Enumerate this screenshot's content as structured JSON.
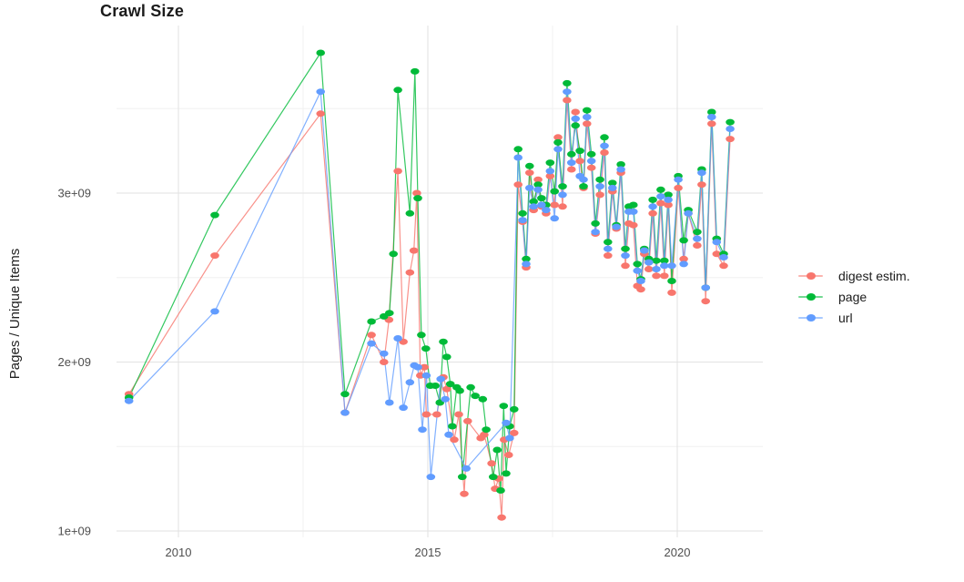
{
  "title": "Crawl Size",
  "y_axis": {
    "label": "Pages / Unique Items",
    "ticks": [
      {
        "label": "1e+09",
        "value": 1.0
      },
      {
        "label": "2e+09",
        "value": 2.0
      },
      {
        "label": "3e+09",
        "value": 3.0
      }
    ],
    "minor_values": [
      1.5,
      2.5,
      3.5
    ]
  },
  "x_axis": {
    "ticks": [
      {
        "label": "2010",
        "year": 2010
      },
      {
        "label": "2015",
        "year": 2015
      },
      {
        "label": "2020",
        "year": 2020
      }
    ],
    "minor_years": [
      2012.5,
      2017.5
    ]
  },
  "legend": {
    "items": [
      {
        "label": "digest estim.",
        "color": "#F8766D"
      },
      {
        "label": "page",
        "color": "#00BA38"
      },
      {
        "label": "url",
        "color": "#619CFF"
      }
    ]
  },
  "chart_data": {
    "type": "line",
    "title": "Crawl Size",
    "xlabel": "",
    "ylabel": "Pages / Unique Items",
    "x_range": [
      2008.7,
      2021.6
    ],
    "y_range": [
      0.97,
      3.95
    ],
    "y_unit": "billions (value × 1e9)",
    "grid": true,
    "legend_position": "right",
    "series": [
      {
        "name": "digest estim.",
        "color": "#F8766D",
        "points": [
          [
            2009.01,
            1.81
          ],
          [
            2010.73,
            2.63
          ],
          [
            2012.85,
            3.47
          ],
          [
            2013.34,
            1.7
          ],
          [
            2013.87,
            2.16
          ],
          [
            2014.12,
            2.0
          ],
          [
            2014.22,
            2.25
          ],
          [
            2014.4,
            3.13
          ],
          [
            2014.51,
            2.12
          ],
          [
            2014.64,
            2.53
          ],
          [
            2014.72,
            2.66
          ],
          [
            2014.78,
            3.0
          ],
          [
            2014.85,
            1.92
          ],
          [
            2014.93,
            1.97
          ],
          [
            2014.97,
            1.69
          ],
          [
            2015.18,
            1.69
          ],
          [
            2015.31,
            1.91
          ],
          [
            2015.38,
            1.84
          ],
          [
            2015.53,
            1.54
          ],
          [
            2015.62,
            1.69
          ],
          [
            2015.73,
            1.22
          ],
          [
            2015.8,
            1.65
          ],
          [
            2016.06,
            1.55
          ],
          [
            2016.13,
            1.57
          ],
          [
            2016.28,
            1.4
          ],
          [
            2016.35,
            1.25
          ],
          [
            2016.42,
            1.31
          ],
          [
            2016.48,
            1.08
          ],
          [
            2016.53,
            1.54
          ],
          [
            2016.62,
            1.45
          ],
          [
            2016.73,
            1.58
          ],
          [
            2016.81,
            3.05
          ],
          [
            2016.9,
            2.83
          ],
          [
            2016.97,
            2.56
          ],
          [
            2017.04,
            3.12
          ],
          [
            2017.12,
            2.9
          ],
          [
            2017.21,
            3.08
          ],
          [
            2017.28,
            2.92
          ],
          [
            2017.37,
            2.88
          ],
          [
            2017.45,
            3.1
          ],
          [
            2017.54,
            2.93
          ],
          [
            2017.61,
            3.33
          ],
          [
            2017.7,
            2.92
          ],
          [
            2017.79,
            3.55
          ],
          [
            2017.88,
            3.14
          ],
          [
            2017.96,
            3.48
          ],
          [
            2018.05,
            3.19
          ],
          [
            2018.12,
            3.03
          ],
          [
            2018.19,
            3.41
          ],
          [
            2018.28,
            3.15
          ],
          [
            2018.36,
            2.76
          ],
          [
            2018.45,
            2.99
          ],
          [
            2018.54,
            3.24
          ],
          [
            2018.61,
            2.63
          ],
          [
            2018.7,
            3.01
          ],
          [
            2018.78,
            2.79
          ],
          [
            2018.87,
            3.12
          ],
          [
            2018.96,
            2.57
          ],
          [
            2019.03,
            2.82
          ],
          [
            2019.12,
            2.81
          ],
          [
            2019.2,
            2.45
          ],
          [
            2019.27,
            2.43
          ],
          [
            2019.34,
            2.64
          ],
          [
            2019.43,
            2.55
          ],
          [
            2019.51,
            2.88
          ],
          [
            2019.58,
            2.51
          ],
          [
            2019.67,
            2.94
          ],
          [
            2019.74,
            2.51
          ],
          [
            2019.82,
            2.93
          ],
          [
            2019.89,
            2.41
          ],
          [
            2020.02,
            3.03
          ],
          [
            2020.13,
            2.61
          ],
          [
            2020.22,
            2.88
          ],
          [
            2020.4,
            2.69
          ],
          [
            2020.49,
            3.05
          ],
          [
            2020.57,
            2.36
          ],
          [
            2020.69,
            3.41
          ],
          [
            2020.79,
            2.64
          ],
          [
            2020.93,
            2.57
          ],
          [
            2021.06,
            3.32
          ]
        ]
      },
      {
        "name": "page",
        "color": "#00BA38",
        "points": [
          [
            2009.01,
            1.79
          ],
          [
            2010.73,
            2.87
          ],
          [
            2012.85,
            3.83
          ],
          [
            2013.34,
            1.81
          ],
          [
            2013.87,
            2.24
          ],
          [
            2014.12,
            2.27
          ],
          [
            2014.23,
            2.29
          ],
          [
            2014.31,
            2.64
          ],
          [
            2014.4,
            3.61
          ],
          [
            2014.64,
            2.88
          ],
          [
            2014.74,
            3.72
          ],
          [
            2014.8,
            2.97
          ],
          [
            2014.87,
            2.16
          ],
          [
            2014.96,
            2.08
          ],
          [
            2015.05,
            1.86
          ],
          [
            2015.15,
            1.86
          ],
          [
            2015.24,
            1.76
          ],
          [
            2015.31,
            2.12
          ],
          [
            2015.38,
            2.03
          ],
          [
            2015.45,
            1.87
          ],
          [
            2015.49,
            1.62
          ],
          [
            2015.58,
            1.85
          ],
          [
            2015.64,
            1.83
          ],
          [
            2015.69,
            1.32
          ],
          [
            2015.86,
            1.85
          ],
          [
            2015.95,
            1.8
          ],
          [
            2016.1,
            1.78
          ],
          [
            2016.17,
            1.6
          ],
          [
            2016.31,
            1.32
          ],
          [
            2016.39,
            1.48
          ],
          [
            2016.46,
            1.24
          ],
          [
            2016.52,
            1.74
          ],
          [
            2016.57,
            1.34
          ],
          [
            2016.64,
            1.62
          ],
          [
            2016.73,
            1.72
          ],
          [
            2016.81,
            3.26
          ],
          [
            2016.9,
            2.88
          ],
          [
            2016.97,
            2.61
          ],
          [
            2017.04,
            3.16
          ],
          [
            2017.12,
            2.95
          ],
          [
            2017.21,
            3.05
          ],
          [
            2017.28,
            2.97
          ],
          [
            2017.37,
            2.93
          ],
          [
            2017.45,
            3.18
          ],
          [
            2017.54,
            3.01
          ],
          [
            2017.61,
            3.3
          ],
          [
            2017.7,
            3.04
          ],
          [
            2017.79,
            3.65
          ],
          [
            2017.88,
            3.23
          ],
          [
            2017.96,
            3.4
          ],
          [
            2018.05,
            3.25
          ],
          [
            2018.12,
            3.04
          ],
          [
            2018.19,
            3.49
          ],
          [
            2018.28,
            3.23
          ],
          [
            2018.36,
            2.82
          ],
          [
            2018.45,
            3.08
          ],
          [
            2018.54,
            3.33
          ],
          [
            2018.61,
            2.71
          ],
          [
            2018.7,
            3.06
          ],
          [
            2018.78,
            2.81
          ],
          [
            2018.87,
            3.17
          ],
          [
            2018.96,
            2.67
          ],
          [
            2019.03,
            2.92
          ],
          [
            2019.12,
            2.93
          ],
          [
            2019.2,
            2.58
          ],
          [
            2019.27,
            2.49
          ],
          [
            2019.34,
            2.67
          ],
          [
            2019.43,
            2.61
          ],
          [
            2019.51,
            2.96
          ],
          [
            2019.58,
            2.6
          ],
          [
            2019.67,
            3.02
          ],
          [
            2019.74,
            2.6
          ],
          [
            2019.82,
            2.99
          ],
          [
            2019.89,
            2.48
          ],
          [
            2020.02,
            3.1
          ],
          [
            2020.13,
            2.72
          ],
          [
            2020.22,
            2.9
          ],
          [
            2020.4,
            2.77
          ],
          [
            2020.49,
            3.14
          ],
          [
            2020.57,
            2.44
          ],
          [
            2020.69,
            3.48
          ],
          [
            2020.79,
            2.73
          ],
          [
            2020.93,
            2.64
          ],
          [
            2021.06,
            3.42
          ]
        ]
      },
      {
        "name": "url",
        "color": "#619CFF",
        "points": [
          [
            2009.01,
            1.77
          ],
          [
            2010.73,
            2.3
          ],
          [
            2012.85,
            3.6
          ],
          [
            2013.34,
            1.7
          ],
          [
            2013.87,
            2.11
          ],
          [
            2014.12,
            2.05
          ],
          [
            2014.23,
            1.76
          ],
          [
            2014.4,
            2.14
          ],
          [
            2014.51,
            1.73
          ],
          [
            2014.64,
            1.88
          ],
          [
            2014.73,
            1.98
          ],
          [
            2014.8,
            1.97
          ],
          [
            2014.89,
            1.6
          ],
          [
            2014.97,
            1.92
          ],
          [
            2015.06,
            1.32
          ],
          [
            2015.26,
            1.9
          ],
          [
            2015.35,
            1.78
          ],
          [
            2015.42,
            1.57
          ],
          [
            2015.77,
            1.37
          ],
          [
            2016.57,
            1.64
          ],
          [
            2016.64,
            1.55
          ],
          [
            2016.81,
            3.21
          ],
          [
            2016.9,
            2.84
          ],
          [
            2016.97,
            2.58
          ],
          [
            2017.04,
            3.03
          ],
          [
            2017.12,
            2.92
          ],
          [
            2017.21,
            3.02
          ],
          [
            2017.28,
            2.93
          ],
          [
            2017.37,
            2.9
          ],
          [
            2017.45,
            3.13
          ],
          [
            2017.54,
            2.85
          ],
          [
            2017.61,
            3.26
          ],
          [
            2017.7,
            2.99
          ],
          [
            2017.79,
            3.6
          ],
          [
            2017.88,
            3.18
          ],
          [
            2017.96,
            3.44
          ],
          [
            2018.05,
            3.1
          ],
          [
            2018.12,
            3.08
          ],
          [
            2018.19,
            3.45
          ],
          [
            2018.28,
            3.19
          ],
          [
            2018.36,
            2.77
          ],
          [
            2018.45,
            3.04
          ],
          [
            2018.54,
            3.28
          ],
          [
            2018.61,
            2.67
          ],
          [
            2018.7,
            3.03
          ],
          [
            2018.78,
            2.8
          ],
          [
            2018.87,
            3.14
          ],
          [
            2018.96,
            2.63
          ],
          [
            2019.03,
            2.89
          ],
          [
            2019.12,
            2.89
          ],
          [
            2019.2,
            2.54
          ],
          [
            2019.27,
            2.48
          ],
          [
            2019.34,
            2.66
          ],
          [
            2019.43,
            2.59
          ],
          [
            2019.51,
            2.92
          ],
          [
            2019.58,
            2.55
          ],
          [
            2019.67,
            2.98
          ],
          [
            2019.74,
            2.57
          ],
          [
            2019.82,
            2.96
          ],
          [
            2019.89,
            2.57
          ],
          [
            2020.02,
            3.08
          ],
          [
            2020.13,
            2.58
          ],
          [
            2020.22,
            2.88
          ],
          [
            2020.4,
            2.73
          ],
          [
            2020.49,
            3.12
          ],
          [
            2020.57,
            2.44
          ],
          [
            2020.69,
            3.45
          ],
          [
            2020.79,
            2.71
          ],
          [
            2020.93,
            2.62
          ],
          [
            2021.06,
            3.38
          ]
        ]
      }
    ]
  }
}
